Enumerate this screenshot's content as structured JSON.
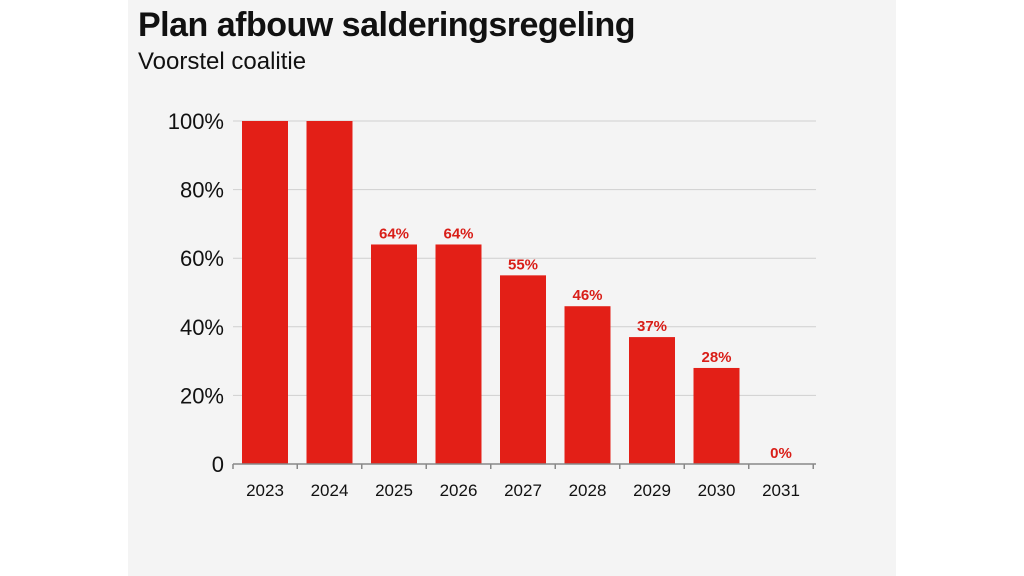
{
  "header": {
    "title": "Plan afbouw salderingsregeling",
    "subtitle": "Voorstel coalitie"
  },
  "chart_data": {
    "type": "bar",
    "title": "Plan afbouw salderingsregeling",
    "subtitle": "Voorstel coalitie",
    "xlabel": "",
    "ylabel": "",
    "categories": [
      "2023",
      "2024",
      "2025",
      "2026",
      "2027",
      "2028",
      "2029",
      "2030",
      "2031"
    ],
    "values": [
      100,
      100,
      64,
      64,
      55,
      46,
      37,
      28,
      0
    ],
    "data_labels": [
      "",
      "",
      "64%",
      "64%",
      "55%",
      "46%",
      "37%",
      "28%",
      "0%"
    ],
    "y_ticks": [
      0,
      20,
      40,
      60,
      80,
      100
    ],
    "y_tick_labels": [
      "0",
      "20%",
      "40%",
      "60%",
      "80%",
      "100%"
    ],
    "ylim": [
      0,
      100
    ],
    "grid": true,
    "legend": "none",
    "colors": {
      "bar": "#e31f17",
      "label": "#d91e18",
      "grid": "#cfcfcf",
      "axis": "#888888",
      "background": "#f4f4f4"
    }
  }
}
